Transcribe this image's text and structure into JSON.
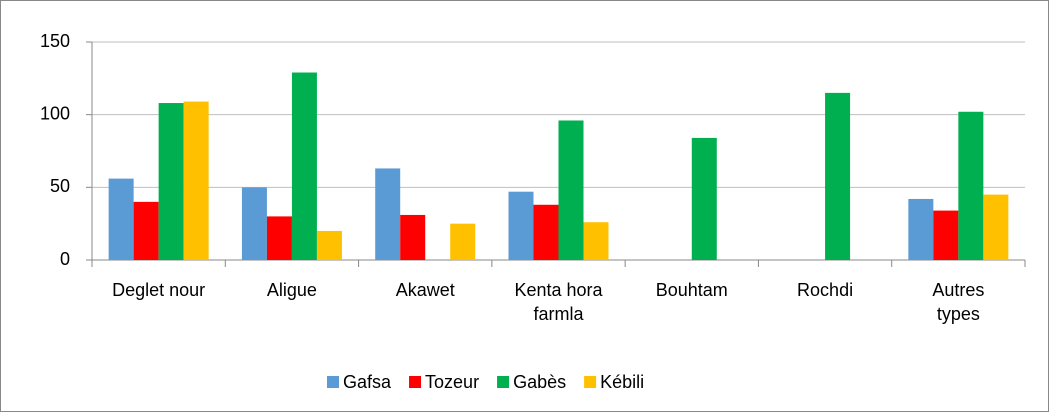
{
  "chart_data": {
    "type": "bar",
    "categories": [
      "Deglet nour",
      "Aligue",
      "Akawet",
      "Kenta hora farmla",
      "Bouhtam",
      "Rochdi",
      "Autres types"
    ],
    "series": [
      {
        "name": "Gafsa",
        "color": "#5b9bd5",
        "values": [
          56,
          50,
          63,
          47,
          null,
          null,
          42
        ]
      },
      {
        "name": "Tozeur",
        "color": "#ff0000",
        "values": [
          40,
          30,
          31,
          38,
          null,
          null,
          34
        ]
      },
      {
        "name": "Gabès",
        "color": "#00b050",
        "values": [
          108,
          129,
          null,
          96,
          84,
          115,
          102
        ]
      },
      {
        "name": "Kébili",
        "color": "#ffc000",
        "values": [
          109,
          20,
          25,
          26,
          null,
          null,
          45
        ]
      }
    ],
    "ylim": [
      0,
      150
    ],
    "yticks": [
      0,
      50,
      100,
      150
    ],
    "grid": true,
    "legend": "bottom"
  }
}
